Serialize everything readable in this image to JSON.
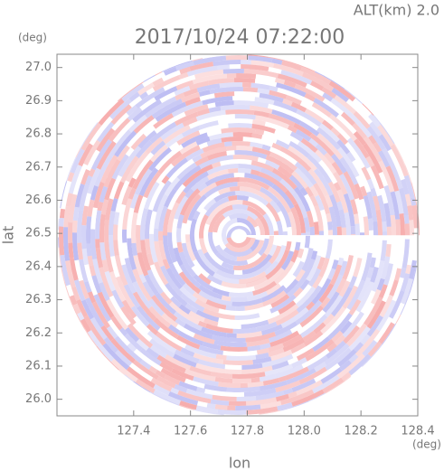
{
  "chart_data": {
    "type": "ppi",
    "title": "2017/10/24 07:22:00",
    "subtitle": "ALT(km) 2.0",
    "x_label": "lon",
    "y_label": "lat",
    "x_unit": "(deg)",
    "y_unit": "(deg)",
    "xlim": [
      127.13,
      128.4
    ],
    "ylim": [
      25.95,
      27.04
    ],
    "xticks": [
      127.4,
      127.6,
      127.8,
      {
        "value": 128.0,
        "label": "128.0"
      },
      128.2,
      128.4
    ],
    "yticks": [
      {
        "value": 26.0,
        "label": "26.0"
      },
      26.1,
      26.2,
      26.3,
      26.4,
      26.5,
      26.6,
      26.7,
      26.8,
      26.9,
      {
        "value": 27.0,
        "label": "27.0"
      }
    ]
  }
}
